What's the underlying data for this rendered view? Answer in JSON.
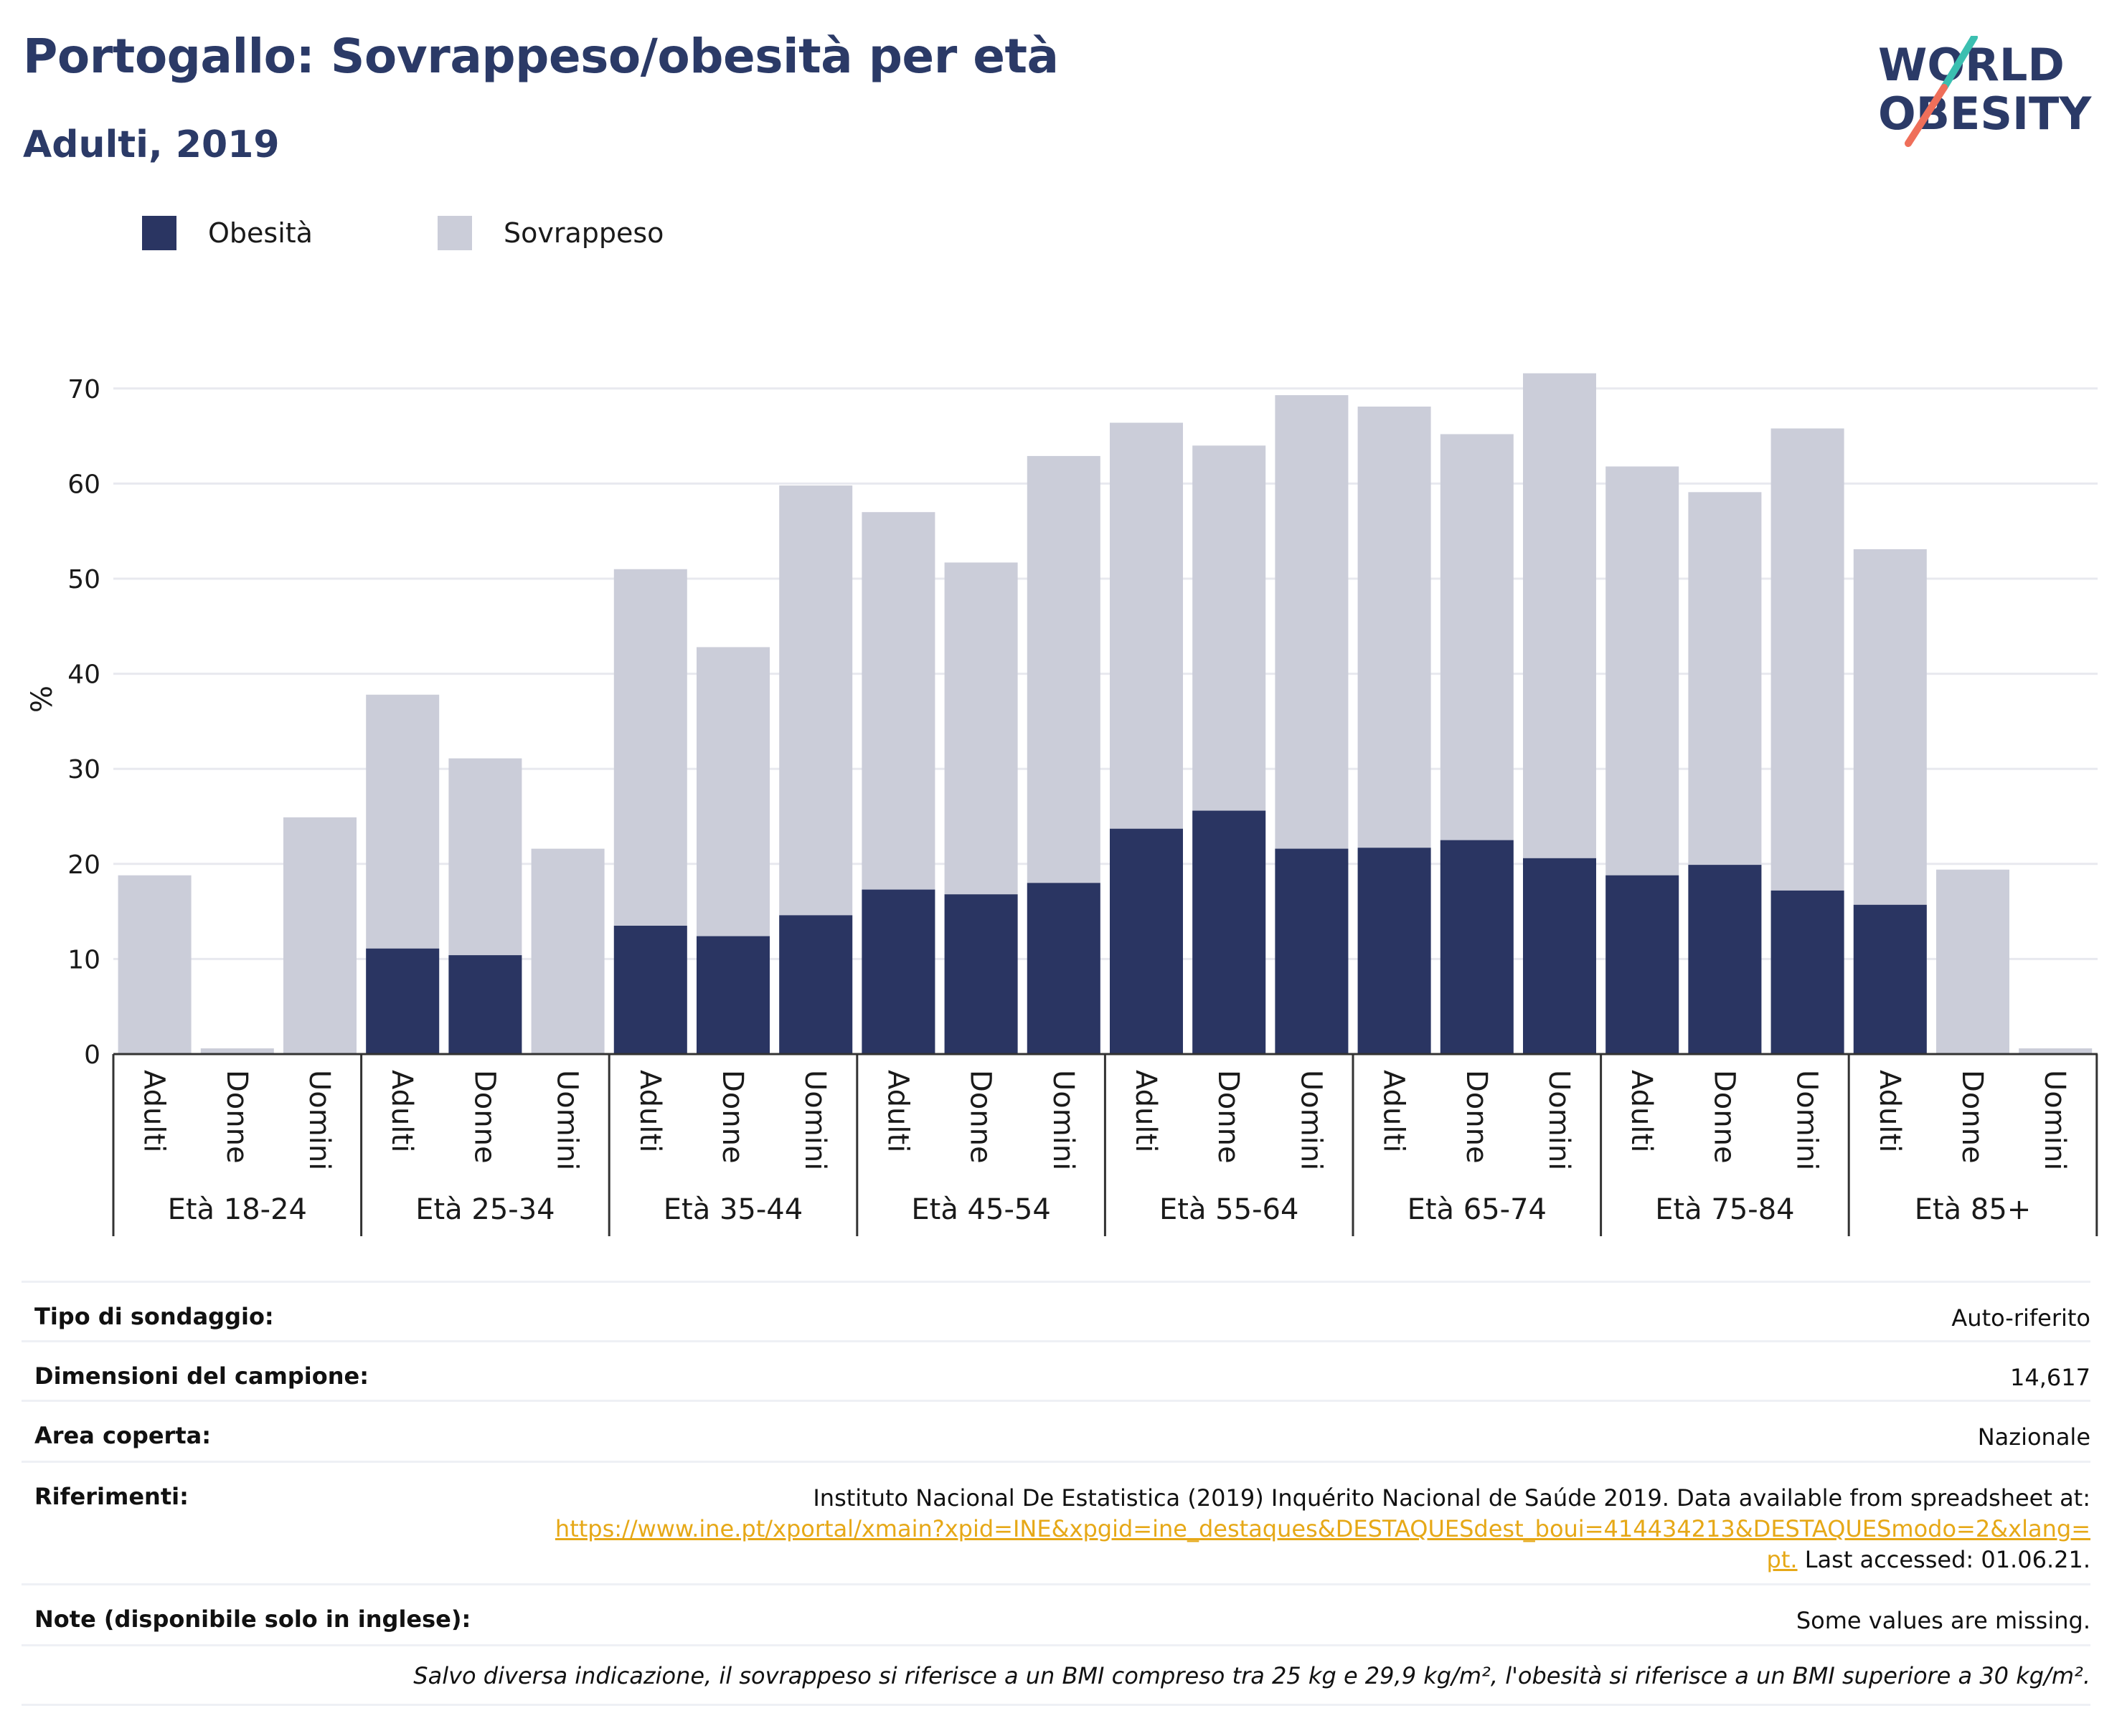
{
  "header": {
    "title": "Portogallo: Sovrappeso/obesità per età",
    "subtitle": "Adulti, 2019"
  },
  "logo": {
    "line1": "WORLD",
    "line2": "OBESITY",
    "accent_teal": "#3bbfb0",
    "accent_coral": "#ef6f5a",
    "text_color": "#2b3a67"
  },
  "legend": [
    {
      "label": "Obesità",
      "color": "#2a3562"
    },
    {
      "label": "Sovrappeso",
      "color": "#cbcdd9"
    }
  ],
  "chart_data": {
    "type": "bar",
    "stacked": false,
    "overlay": true,
    "ylabel": "%",
    "ylim": [
      0,
      73
    ],
    "yticks": [
      0,
      10,
      20,
      30,
      40,
      50,
      60,
      70
    ],
    "grid": true,
    "legend_position": "top-left",
    "groups": [
      {
        "label": "Età 18-24",
        "categories": [
          "Adulti",
          "Donne",
          "Uomini"
        ]
      },
      {
        "label": "Età 25-34",
        "categories": [
          "Adulti",
          "Donne",
          "Uomini"
        ]
      },
      {
        "label": "Età 35-44",
        "categories": [
          "Adulti",
          "Donne",
          "Uomini"
        ]
      },
      {
        "label": "Età 45-54",
        "categories": [
          "Adulti",
          "Donne",
          "Uomini"
        ]
      },
      {
        "label": "Età 55-64",
        "categories": [
          "Adulti",
          "Donne",
          "Uomini"
        ]
      },
      {
        "label": "Età 65-74",
        "categories": [
          "Adulti",
          "Donne",
          "Uomini"
        ]
      },
      {
        "label": "Età 75-84",
        "categories": [
          "Adulti",
          "Donne",
          "Uomini"
        ]
      },
      {
        "label": "Età 85+",
        "categories": [
          "Adulti",
          "Donne",
          "Uomini"
        ]
      }
    ],
    "series": [
      {
        "name": "Sovrappeso",
        "color": "#cbcdd9",
        "values": [
          18.8,
          0.6,
          24.9,
          37.8,
          31.1,
          21.6,
          51.0,
          42.8,
          59.8,
          57.0,
          51.7,
          62.9,
          66.4,
          64.0,
          69.3,
          68.1,
          65.2,
          71.6,
          61.8,
          59.1,
          65.8,
          53.1,
          19.4,
          0.6
        ]
      },
      {
        "name": "Obesità",
        "color": "#2a3562",
        "values": [
          null,
          null,
          null,
          11.1,
          10.4,
          null,
          13.5,
          12.4,
          14.6,
          17.3,
          16.8,
          18.0,
          23.7,
          25.6,
          21.6,
          21.7,
          22.5,
          20.6,
          18.8,
          19.9,
          17.2,
          15.7,
          null,
          null
        ]
      }
    ]
  },
  "info": {
    "survey_type_label": "Tipo di sondaggio:",
    "survey_type_value": "Auto-riferito",
    "sample_size_label": "Dimensioni del campione:",
    "sample_size_value": "14,617",
    "area_label": "Area coperta:",
    "area_value": "Nazionale",
    "references_label": "Riferimenti:",
    "references_text": "Instituto Nacional De Estatistica (2019) Inquérito Nacional de Saúde 2019. Data available from spreadsheet at:",
    "references_link_1": "https://www.ine.pt/xportal/xmain?xpid=INE&xpgid=ine_destaques&DESTAQUESdest_boui=414434213&DESTAQUESmodo=2&xlang=",
    "references_link_2": "pt.",
    "references_accessed": " Last accessed: 01.06.21.",
    "notes_label": "Note (disponibile solo in inglese):",
    "notes_value": "Some values are missing.",
    "footnote": "Salvo diversa indicazione, il sovrappeso si riferisce a un BMI compreso tra 25 kg e 29,9 kg/m², l'obesità si riferisce a un BMI superiore a 30 kg/m²."
  }
}
